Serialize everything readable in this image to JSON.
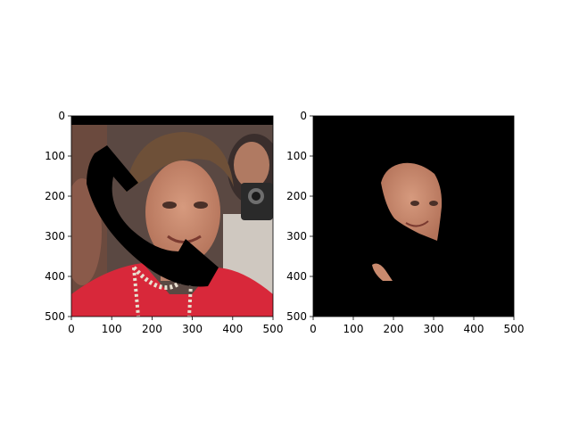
{
  "figure": {
    "background": "#ffffff",
    "panel_count": 2
  },
  "chart_data": [
    {
      "type": "image",
      "title": "",
      "xlabel": "",
      "ylabel": "",
      "xlim": [
        0,
        500
      ],
      "ylim": [
        500,
        0
      ],
      "xticks": [
        "0",
        "100",
        "200",
        "300",
        "400",
        "500"
      ],
      "yticks": [
        "0",
        "100",
        "200",
        "300",
        "400",
        "500"
      ],
      "grid": false,
      "content": "photo of a smiling woman with short hair in a red jacket and pearl necklace, with a camera operator at right; occluded by a black telephone-handset shaped mask and a black strip at the top",
      "colors": {
        "jacket": "#d8283a",
        "skin": "#c98a6e",
        "hair": "#6e5038",
        "background": "#4a3a35",
        "mask": "#000000"
      }
    },
    {
      "type": "image",
      "title": "",
      "xlabel": "",
      "ylabel": "",
      "xlim": [
        0,
        500
      ],
      "ylim": [
        500,
        0
      ],
      "xticks": [
        "0",
        "100",
        "200",
        "300",
        "400",
        "500"
      ],
      "yticks": [
        "0",
        "100",
        "200",
        "300",
        "400",
        "500"
      ],
      "grid": false,
      "content": "segmentation output on black background showing only the visible face region and a small chin fragment",
      "colors": {
        "background": "#000000",
        "skin": "#c98a6e"
      }
    }
  ]
}
